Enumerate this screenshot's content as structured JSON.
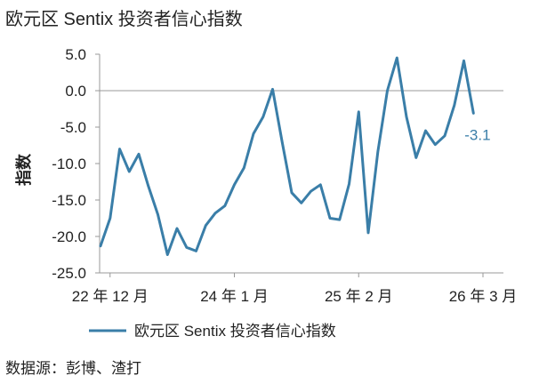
{
  "chart_data": {
    "type": "line",
    "title": "欧元区 Sentix 投资者信心指数",
    "xlabel": "",
    "ylabel": "指数",
    "ylim": [
      -25,
      5
    ],
    "yticks": [
      5.0,
      0.0,
      -5.0,
      -10.0,
      -15.0,
      -20.0,
      -25.0
    ],
    "ytick_labels": [
      "5.0",
      "0.0",
      "-5.0",
      "-10.0",
      "-15.0",
      "-20.0",
      "-25.0"
    ],
    "xtick_labels": [
      "22 年 12 月",
      "24 年 1 月",
      "25 年 2 月",
      "26 年 3 月"
    ],
    "xtick_index": [
      1,
      14,
      27,
      40
    ],
    "grid": false,
    "legend_position": "bottom",
    "end_label": "-3.1",
    "series": [
      {
        "name": "欧元区 Sentix 投资者信心指数",
        "color": "#3a7ea8",
        "values": [
          -21.3,
          -17.5,
          -8.0,
          -11.1,
          -8.7,
          -13.1,
          -17.0,
          -22.5,
          -18.9,
          -21.5,
          -22.0,
          -18.5,
          -16.8,
          -15.8,
          -12.9,
          -10.6,
          -5.9,
          -3.6,
          0.2,
          -7.1,
          -14.0,
          -15.4,
          -13.8,
          -12.9,
          -17.5,
          -17.7,
          -12.8,
          -2.9,
          -19.5,
          -8.4,
          0.0,
          4.5,
          -3.6,
          -9.2,
          -5.5,
          -7.4,
          -6.2,
          -2.0,
          4.1,
          -3.1
        ]
      }
    ]
  },
  "source": "数据源：彭博、渣打"
}
